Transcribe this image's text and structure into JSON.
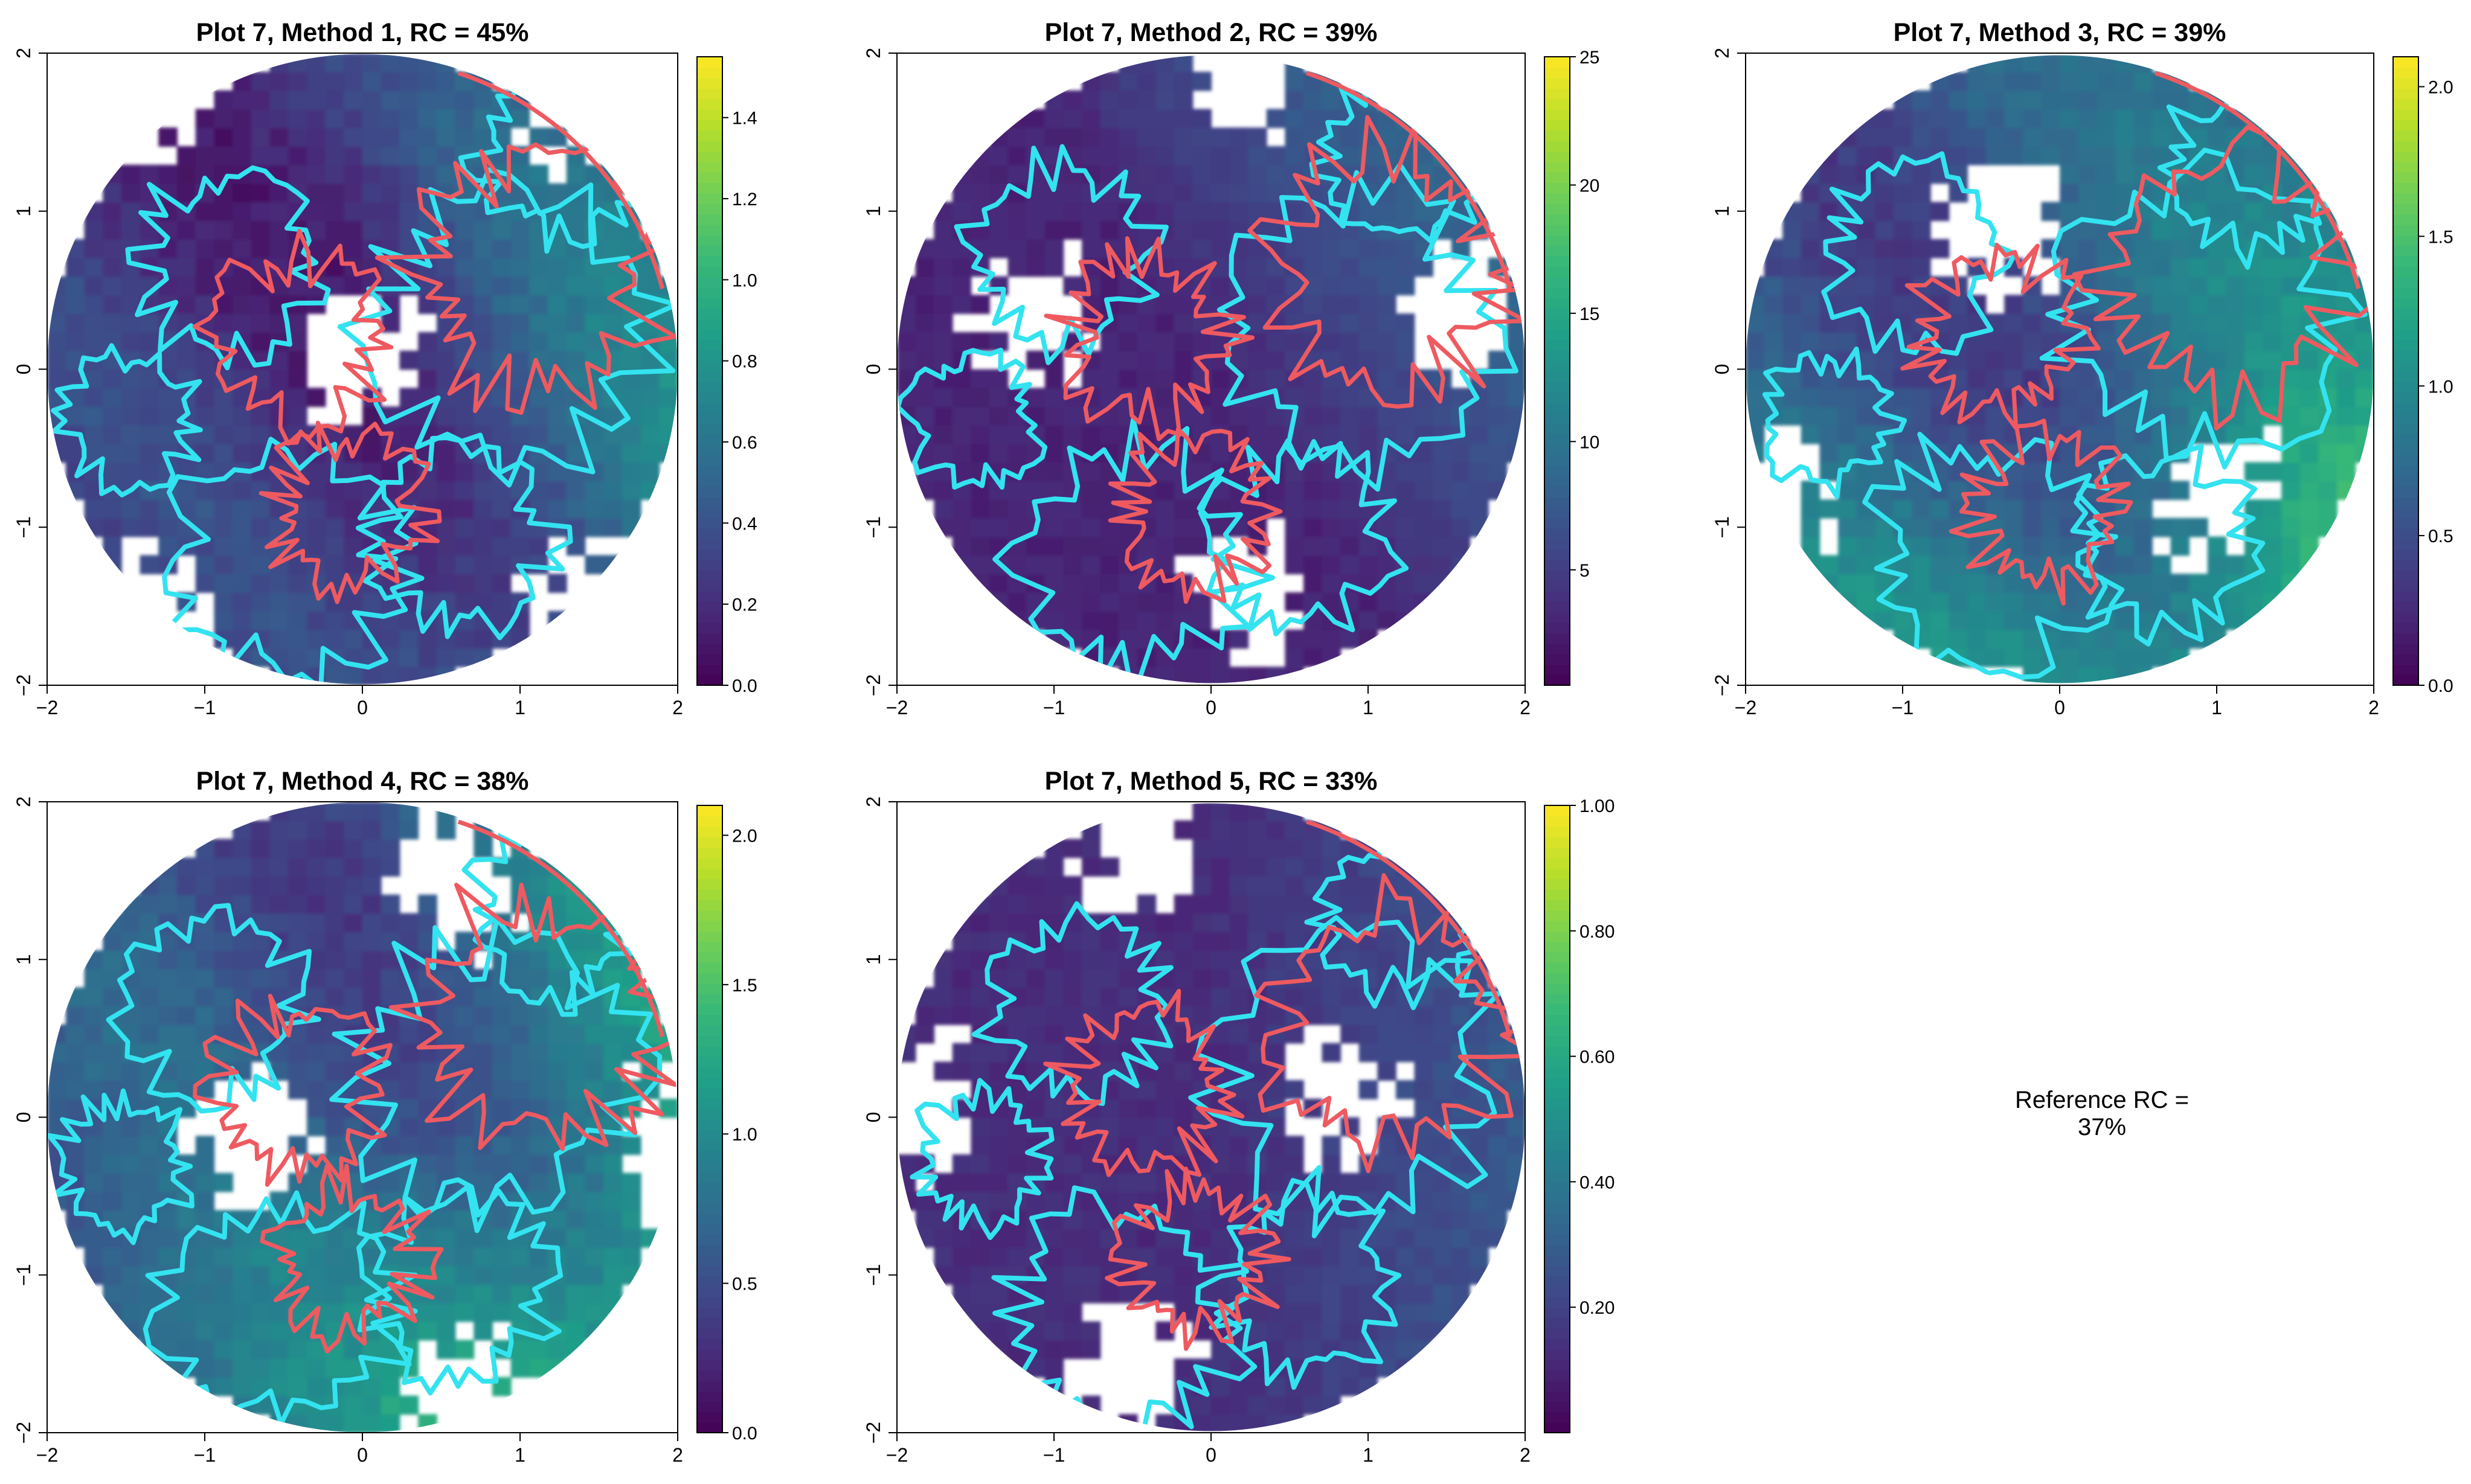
{
  "chart_data": [
    {
      "type": "heatmap",
      "title": "Plot 7, Method 1, RC = 45%",
      "xlim": [
        -2,
        2
      ],
      "ylim": [
        -2,
        2
      ],
      "x_ticks": [
        "-2",
        "-1",
        "0",
        "1",
        "2"
      ],
      "y_ticks": [
        "-2",
        "-1",
        "0",
        "1",
        "2"
      ],
      "colorbar": {
        "min": 0.0,
        "max": 1.55,
        "ticks": [
          "0.0",
          "0.2",
          "0.4",
          "0.6",
          "0.8",
          "1.0",
          "1.2",
          "1.4"
        ],
        "tick_values": [
          0,
          0.2,
          0.4,
          0.6,
          0.8,
          1.0,
          1.2,
          1.4
        ]
      },
      "seed": 11
    },
    {
      "type": "heatmap",
      "title": "Plot 7, Method 2, RC = 39%",
      "xlim": [
        -2,
        2
      ],
      "ylim": [
        -2,
        2
      ],
      "x_ticks": [
        "-2",
        "-1",
        "0",
        "1",
        "2"
      ],
      "y_ticks": [
        "-2",
        "-1",
        "0",
        "1",
        "2"
      ],
      "colorbar": {
        "min": 0.5,
        "max": 25,
        "ticks": [
          "5",
          "10",
          "15",
          "20",
          "25"
        ],
        "tick_values": [
          5,
          10,
          15,
          20,
          25
        ]
      },
      "seed": 23
    },
    {
      "type": "heatmap",
      "title": "Plot 7, Method 3, RC = 39%",
      "xlim": [
        -2,
        2
      ],
      "ylim": [
        -2,
        2
      ],
      "x_ticks": [
        "-2",
        "-1",
        "0",
        "1",
        "2"
      ],
      "y_ticks": [
        "-2",
        "-1",
        "0",
        "1",
        "2"
      ],
      "colorbar": {
        "min": 0.0,
        "max": 2.1,
        "ticks": [
          "0.0",
          "0.5",
          "1.0",
          "1.5",
          "2.0"
        ],
        "tick_values": [
          0,
          0.5,
          1.0,
          1.5,
          2.0
        ]
      },
      "seed": 37
    },
    {
      "type": "heatmap",
      "title": "Plot 7, Method 4, RC = 38%",
      "xlim": [
        -2,
        2
      ],
      "ylim": [
        -2,
        2
      ],
      "x_ticks": [
        "-2",
        "-1",
        "0",
        "1",
        "2"
      ],
      "y_ticks": [
        "-2",
        "-1",
        "0",
        "1",
        "2"
      ],
      "colorbar": {
        "min": 0.0,
        "max": 2.1,
        "ticks": [
          "0.0",
          "0.5",
          "1.0",
          "1.5",
          "2.0"
        ],
        "tick_values": [
          0,
          0.5,
          1.0,
          1.5,
          2.0
        ]
      },
      "seed": 41
    },
    {
      "type": "heatmap",
      "title": "Plot 7, Method 5, RC = 33%",
      "xlim": [
        -2,
        2
      ],
      "ylim": [
        -2,
        2
      ],
      "x_ticks": [
        "-2",
        "-1",
        "0",
        "1",
        "2"
      ],
      "y_ticks": [
        "-2",
        "-1",
        "0",
        "1",
        "2"
      ],
      "colorbar": {
        "min": 0.0,
        "max": 1.0,
        "ticks": [
          "0.20",
          "0.40",
          "0.60",
          "0.80",
          "1.00"
        ],
        "tick_values": [
          0.2,
          0.4,
          0.6,
          0.8,
          1.0
        ]
      },
      "seed": 53
    }
  ],
  "reference_label": "Reference RC = 37%",
  "colors": {
    "cyan_outline": "#33e3f0",
    "red_outline": "#ee5a60",
    "viridis": [
      "#440154",
      "#482878",
      "#3e4989",
      "#31688e",
      "#26828e",
      "#1f9e89",
      "#35b779",
      "#6ece58",
      "#b5de2b",
      "#fde725"
    ]
  }
}
